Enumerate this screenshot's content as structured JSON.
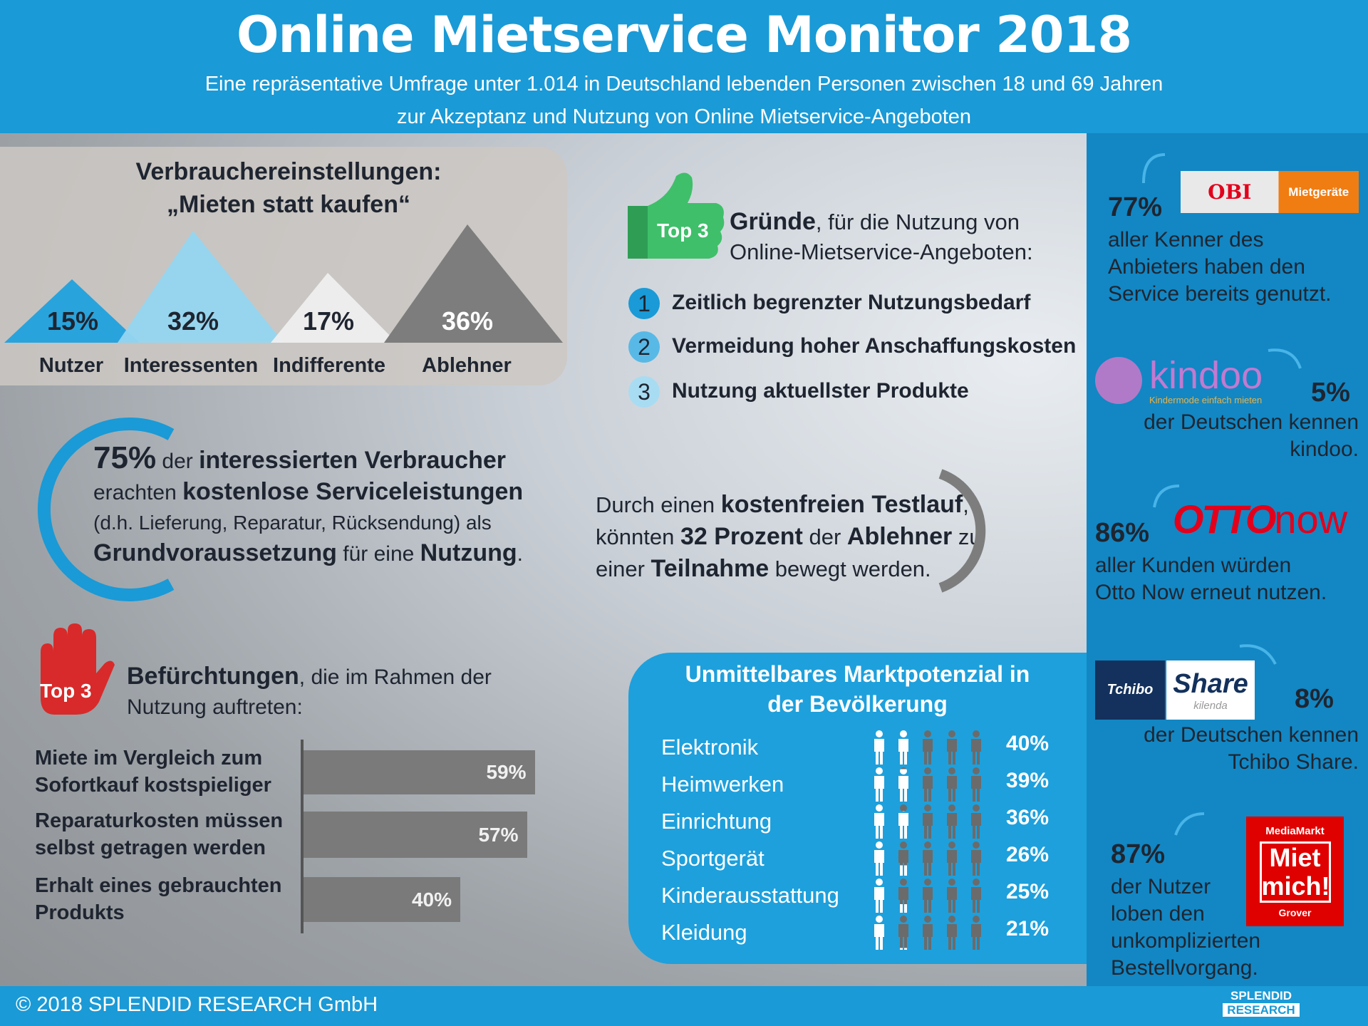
{
  "header": {
    "title": "Online Mietservice Monitor 2018",
    "subtitle_1": "Eine repräsentative Umfrage unter 1.014 in Deutschland lebenden Personen zwischen 18 und 69 Jahren",
    "subtitle_2": "zur Akzeptanz und Nutzung von Online Mietservice-Angeboten",
    "bg_color": "#1a9ad6"
  },
  "attitudes": {
    "title_1": "Verbrauchereinstellungen:",
    "title_2": "„Mieten statt kaufen“",
    "groups": [
      {
        "label": "Nutzer",
        "pct": "15%",
        "value": 15,
        "color": "#29a3dc"
      },
      {
        "label": "Interessenten",
        "pct": "32%",
        "value": 32,
        "color": "#95d6f0"
      },
      {
        "label": "Indifferente",
        "pct": "17%",
        "value": 17,
        "color": "#efefef"
      },
      {
        "label": "Ablehner",
        "pct": "36%",
        "value": 36,
        "color": "#7d7d7d"
      }
    ]
  },
  "service": {
    "pct": "75%",
    "t1": " der ",
    "t2": "interessierten Verbraucher",
    "t3": "erachten ",
    "t4": "kostenlose Serviceleistungen",
    "t5": "(d.h. Lieferung, Reparatur, Rücksendung) als",
    "t6": "Grundvoraussetzung",
    "t7": " für eine ",
    "t8": "Nutzung",
    "t9": "."
  },
  "reasons": {
    "badge": "Top 3",
    "head_bold": "Gründe",
    "head_rest": ", für die Nutzung von",
    "head_2": "Online-Mietservice-Angeboten:",
    "items": [
      {
        "n": "1",
        "text": "Zeitlich begrenzter Nutzungsbedarf",
        "color": "#1a9ad6"
      },
      {
        "n": "2",
        "text": "Vermeidung hoher Anschaffungskosten",
        "color": "#58b9e6"
      },
      {
        "n": "3",
        "text": "Nutzung aktuellster Produkte",
        "color": "#a8dcf2"
      }
    ]
  },
  "trial": {
    "a": "Durch einen ",
    "b": "kostenfreien Testlauf",
    "c": ",",
    "d": "könnten ",
    "e": "32 Prozent",
    "f": " der ",
    "g": "Ablehner",
    "h": " zu",
    "i": "einer ",
    "j": "Teilnahme",
    "k": " bewegt werden."
  },
  "concerns": {
    "badge": "Top 3",
    "head_bold": "Befürchtungen",
    "head_rest": ", die im Rahmen der",
    "head_2": "Nutzung auftreten:",
    "items": [
      {
        "l1": "Miete im Vergleich zum",
        "l2": "Sofortkauf kostspieliger",
        "pct": "59%",
        "value": 59
      },
      {
        "l1": "Reparaturkosten müssen",
        "l2": "selbst getragen werden",
        "pct": "57%",
        "value": 57
      },
      {
        "l1": "Erhalt eines gebrauchten",
        "l2": "Produkts",
        "pct": "40%",
        "value": 40
      }
    ]
  },
  "market": {
    "title_1": "Unmittelbares Marktpotenzial in",
    "title_2": "der Bevölkerung",
    "rows": [
      {
        "label": "Elektronik",
        "pct": "40%",
        "value": 40
      },
      {
        "label": "Heimwerken",
        "pct": "39%",
        "value": 39
      },
      {
        "label": "Einrichtung",
        "pct": "36%",
        "value": 36
      },
      {
        "label": "Sportgerät",
        "pct": "26%",
        "value": 26
      },
      {
        "label": "Kinderausstattung",
        "pct": "25%",
        "value": 25
      },
      {
        "label": "Kleidung",
        "pct": "21%",
        "value": 21
      }
    ]
  },
  "sidebar": {
    "obi": {
      "logo": "OBI",
      "logo2": "Mietgeräte",
      "pct": "77%",
      "l1": "aller Kenner des",
      "l2": "Anbieters haben den",
      "l3": "Service bereits genutzt."
    },
    "kindoo": {
      "logo": "kindoo",
      "tagline": "Kindermode einfach mieten",
      "pct": "5%",
      "l1": "der Deutschen kennen",
      "l2": "kindoo."
    },
    "otto": {
      "logo_a": "OTTO",
      "logo_b": "now",
      "pct": "86%",
      "l1": "aller Kunden würden",
      "l2": "Otto Now erneut nutzen."
    },
    "tchibo": {
      "logo_a": "Tchibo",
      "logo_b": "Share",
      "logo_c": "kilenda",
      "pct": "8%",
      "l1": "der Deutschen kennen",
      "l2": "Tchibo Share."
    },
    "mediamarkt": {
      "logo_a": "MediaMarkt",
      "logo_b": "Miet mich!",
      "logo_c": "Grover",
      "pct": "87%",
      "l1": "der Nutzer",
      "l2": "loben den",
      "l3": "unkomplizierten",
      "l4": "Bestellvorgang."
    }
  },
  "footer": {
    "copyright": "© 2018 SPLENDID RESEARCH GmbH",
    "logo_1": "SPLENDID",
    "logo_2": "RESEARCH"
  }
}
